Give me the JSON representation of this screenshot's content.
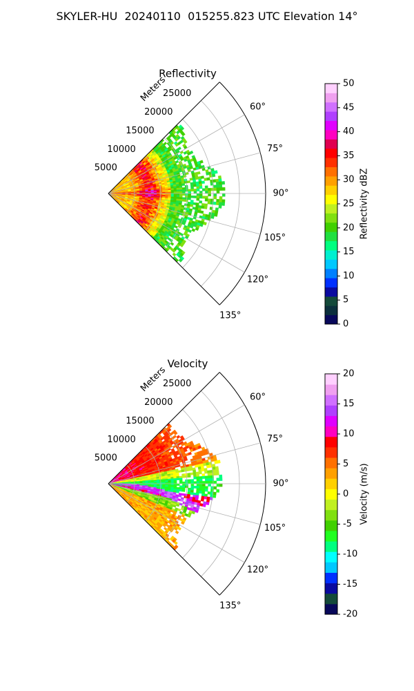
{
  "figure": {
    "title": "SKYLER-HU  20240110  015255.823 UTC Elevation 14°"
  },
  "chart_data": [
    {
      "type": "heatmap",
      "projection": "polar-sector",
      "title": "Reflectivity",
      "range_label": "Meters",
      "range_ticks": [
        5000,
        10000,
        15000,
        20000,
        25000
      ],
      "range_max": 30000,
      "azimuth_ticks": [
        60,
        75,
        90,
        105,
        120,
        135
      ],
      "azimuth_range_deg": [
        45,
        135
      ],
      "grid": true,
      "colorbar": {
        "label": "Reflectivity dBZ",
        "range": [
          0,
          50
        ],
        "ticks": [
          0,
          5,
          10,
          15,
          20,
          25,
          30,
          35,
          40,
          45,
          50
        ]
      },
      "dominant_values": "~20–30 dBZ echoes out to ~20000 m; peaks ~35–45 dBZ within ~10000 m"
    },
    {
      "type": "heatmap",
      "projection": "polar-sector",
      "title": "Velocity",
      "range_label": "Meters",
      "range_ticks": [
        5000,
        10000,
        15000,
        20000,
        25000
      ],
      "range_max": 30000,
      "azimuth_ticks": [
        60,
        75,
        90,
        105,
        120,
        135
      ],
      "azimuth_range_deg": [
        45,
        135
      ],
      "grid": true,
      "colorbar": {
        "label": "Velocity (m/s)",
        "range": [
          -20,
          20
        ],
        "ticks": [
          -20,
          -15,
          -10,
          -5,
          0,
          5,
          10,
          15,
          20
        ]
      },
      "dominant_values": "~0 to +10 m/s toward north azimuths, ~-10 m/s near 90°, +10 to +15 m/s band near 100–110°"
    }
  ],
  "colors": {
    "reflectivity_scale": [
      "#08085a",
      "#0b2f3c",
      "#144a3a",
      "#0a0aa0",
      "#0030ff",
      "#0080ff",
      "#00c8ff",
      "#00f0d0",
      "#00ff80",
      "#20e040",
      "#40d000",
      "#80e010",
      "#c0f020",
      "#ffff00",
      "#ffd000",
      "#ffa000",
      "#ff7000",
      "#ff3000",
      "#ff0000",
      "#e00050",
      "#ff00c0",
      "#e000ff",
      "#b040ff",
      "#d070ff",
      "#f0a0f0",
      "#ffd0ff"
    ],
    "velocity_scale": [
      "#08085a",
      "#144a3a",
      "#0a0aa0",
      "#0030ff",
      "#00c8ff",
      "#00ffff",
      "#00ff80",
      "#20ff20",
      "#40d000",
      "#80e010",
      "#c0f020",
      "#ffff00",
      "#ffd000",
      "#ffa000",
      "#ff7000",
      "#ff3000",
      "#ff0000",
      "#ff00c0",
      "#e000ff",
      "#b040ff",
      "#d070ff",
      "#f0a0f0",
      "#ffd0ff"
    ]
  }
}
